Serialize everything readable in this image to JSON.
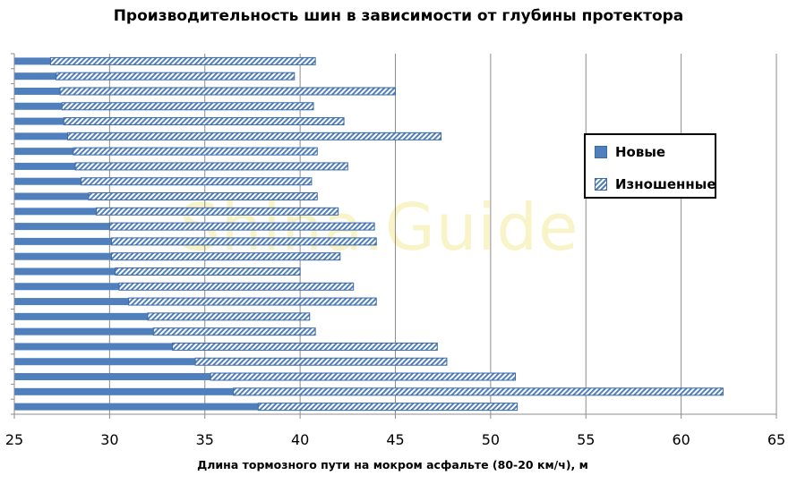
{
  "chart_data": {
    "type": "bar",
    "orientation": "horizontal",
    "title": "Производительность шин в зависимости от глубины протектора",
    "xlabel": "Длина тормозного пути на мокром асфальте (80-20 км/ч), м",
    "ylabel": "",
    "xlim": [
      25,
      65
    ],
    "xticks": [
      25,
      30,
      35,
      40,
      45,
      50,
      55,
      60,
      65
    ],
    "grid": true,
    "legend_position": "right",
    "watermark": "Shina.Guide",
    "series": [
      {
        "name": "Новые",
        "color": "#4f7fbd",
        "values": [
          26.9,
          27.2,
          27.4,
          27.5,
          27.6,
          27.8,
          28.1,
          28.2,
          28.5,
          28.9,
          29.3,
          30.0,
          30.1,
          30.1,
          30.3,
          30.5,
          31.0,
          32.0,
          32.3,
          33.3,
          34.5,
          35.3,
          36.5,
          37.8
        ]
      },
      {
        "name": "Изношенные",
        "color": "#4f7fbd",
        "pattern": "hatched",
        "values": [
          40.8,
          39.7,
          45.0,
          40.7,
          42.3,
          47.4,
          40.9,
          42.5,
          40.6,
          40.9,
          42.0,
          43.9,
          44.0,
          42.1,
          40.0,
          42.8,
          44.0,
          40.5,
          40.8,
          47.2,
          47.7,
          51.3,
          62.2,
          51.4
        ]
      }
    ]
  }
}
